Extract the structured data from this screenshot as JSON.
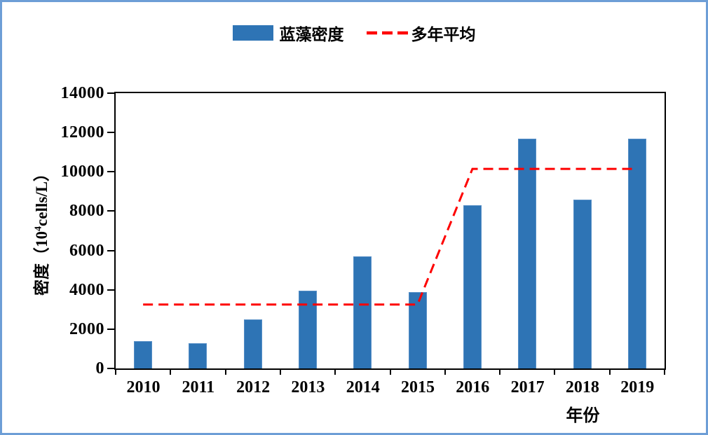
{
  "frame": {
    "border_color": "#6d9ed6",
    "background": "#ffffff"
  },
  "legend": {
    "items": [
      {
        "label": "蓝藻密度",
        "marker": "bar-swatch",
        "color": "#2e74b5"
      },
      {
        "label": "多年平均",
        "marker": "dashed-line",
        "color": "#fe0000"
      }
    ]
  },
  "axes": {
    "ylabel_full": "密度（10⁴cells/L）",
    "ylabel_prefix": "密度（10",
    "ylabel_sup": "4",
    "ylabel_suffix": "cells/L）",
    "xlabel": "年份"
  },
  "chart_data": {
    "type": "bar",
    "categories": [
      "2010",
      "2011",
      "2012",
      "2013",
      "2014",
      "2015",
      "2016",
      "2017",
      "2018",
      "2019"
    ],
    "series": [
      {
        "name": "蓝藻密度",
        "type": "bar",
        "color": "#2e74b5",
        "values": [
          1400,
          1300,
          2500,
          3950,
          5700,
          3900,
          8300,
          11700,
          8600,
          11700
        ]
      },
      {
        "name": "多年平均",
        "type": "line",
        "line_style": "dashed",
        "color": "#fe0000",
        "values": [
          3250,
          3250,
          3250,
          3250,
          3250,
          3250,
          10150,
          10150,
          10150,
          10150
        ]
      }
    ],
    "title": "",
    "xlabel": "年份",
    "ylabel": "密度（10⁴cells/L）",
    "ylim": [
      0,
      14000
    ],
    "yticks": [
      0,
      2000,
      4000,
      6000,
      8000,
      10000,
      12000,
      14000
    ],
    "grid": false,
    "legend_position": "top-center"
  }
}
